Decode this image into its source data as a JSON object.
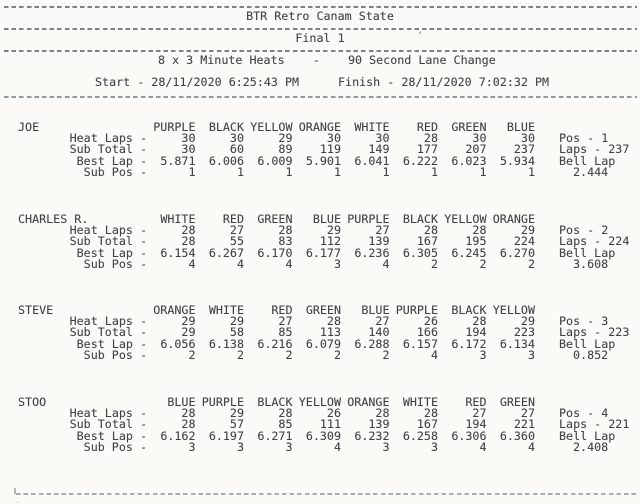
{
  "document": {
    "title": "BTR Retro Canam State",
    "round": "Final 1",
    "format_line": "8 x 3 Minute Heats    -    90 Second Lane Change",
    "start": "Start - 28/11/2020 6:25:43 PM",
    "finish": "Finish - 28/11/2020 7:02:32 PM"
  },
  "results": [
    {
      "name": "JOE",
      "lanes": [
        "PURPLE",
        "BLACK",
        "YELLOW",
        "ORANGE",
        "WHITE",
        "RED",
        "GREEN",
        "BLUE"
      ],
      "rows": [
        {
          "label": "Heat Laps -",
          "values": [
            "30",
            "30",
            "29",
            "30",
            "30",
            "28",
            "30",
            "30"
          ],
          "side": "Pos - 1"
        },
        {
          "label": "Sub Total -",
          "values": [
            "30",
            "60",
            "89",
            "119",
            "149",
            "177",
            "207",
            "237"
          ],
          "side": "Laps - 237"
        },
        {
          "label": "Best Lap -",
          "values": [
            "5.871",
            "6.006",
            "6.009",
            "5.901",
            "6.041",
            "6.222",
            "6.023",
            "5.934"
          ],
          "side": "Bell Lap"
        },
        {
          "label": "Sub Pos -",
          "values": [
            "1",
            "1",
            "1",
            "1",
            "1",
            "1",
            "1",
            "1"
          ],
          "side": "2.444"
        }
      ]
    },
    {
      "name": "CHARLES R.",
      "lanes": [
        "WHITE",
        "RED",
        "GREEN",
        "BLUE",
        "PURPLE",
        "BLACK",
        "YELLOW",
        "ORANGE"
      ],
      "rows": [
        {
          "label": "Heat Laps -",
          "values": [
            "28",
            "27",
            "28",
            "29",
            "27",
            "28",
            "28",
            "29"
          ],
          "side": "Pos - 2"
        },
        {
          "label": "Sub Total -",
          "values": [
            "28",
            "55",
            "83",
            "112",
            "139",
            "167",
            "195",
            "224"
          ],
          "side": "Laps - 224"
        },
        {
          "label": "Best Lap -",
          "values": [
            "6.154",
            "6.267",
            "6.170",
            "6.177",
            "6.236",
            "6.305",
            "6.245",
            "6.270"
          ],
          "side": "Bell Lap"
        },
        {
          "label": "Sub Pos -",
          "values": [
            "4",
            "4",
            "4",
            "3",
            "4",
            "2",
            "2",
            "2"
          ],
          "side": "3.608"
        }
      ]
    },
    {
      "name": "STEVE",
      "lanes": [
        "ORANGE",
        "WHITE",
        "RED",
        "GREEN",
        "BLUE",
        "PURPLE",
        "BLACK",
        "YELLOW"
      ],
      "rows": [
        {
          "label": "Heat Laps -",
          "values": [
            "29",
            "29",
            "27",
            "28",
            "27",
            "26",
            "28",
            "29"
          ],
          "side": "Pos - 3"
        },
        {
          "label": "Sub Total -",
          "values": [
            "29",
            "58",
            "85",
            "113",
            "140",
            "166",
            "194",
            "223"
          ],
          "side": "Laps - 223"
        },
        {
          "label": "Best Lap -",
          "values": [
            "6.056",
            "6.138",
            "6.216",
            "6.079",
            "6.288",
            "6.157",
            "6.172",
            "6.134"
          ],
          "side": "Bell Lap"
        },
        {
          "label": "Sub Pos -",
          "values": [
            "2",
            "2",
            "2",
            "2",
            "2",
            "4",
            "3",
            "3"
          ],
          "side": "0.852"
        }
      ]
    },
    {
      "name": "STOO",
      "lanes": [
        "BLUE",
        "PURPLE",
        "BLACK",
        "YELLOW",
        "ORANGE",
        "WHITE",
        "RED",
        "GREEN"
      ],
      "rows": [
        {
          "label": "Heat Laps -",
          "values": [
            "28",
            "29",
            "28",
            "26",
            "28",
            "28",
            "27",
            "27"
          ],
          "side": "Pos - 4"
        },
        {
          "label": "Sub Total -",
          "values": [
            "28",
            "57",
            "85",
            "111",
            "139",
            "167",
            "194",
            "221"
          ],
          "side": "Laps - 221"
        },
        {
          "label": "Best Lap -",
          "values": [
            "6.162",
            "6.197",
            "6.271",
            "6.309",
            "6.232",
            "6.258",
            "6.306",
            "6.360"
          ],
          "side": "Bell Lap"
        },
        {
          "label": "Sub Pos -",
          "values": [
            "3",
            "3",
            "3",
            "4",
            "3",
            "3",
            "4",
            "4"
          ],
          "side": "2.408"
        }
      ]
    }
  ]
}
